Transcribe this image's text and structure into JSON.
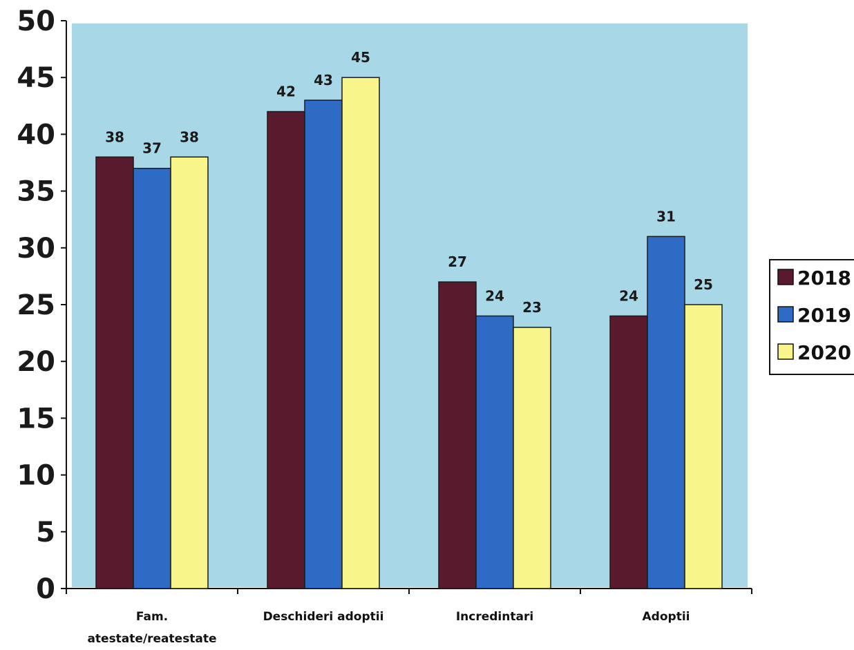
{
  "chart_data": {
    "type": "bar",
    "categories": [
      "Fam. atestate/reatestate",
      "Deschideri adoptii",
      "Incredintari",
      "Adoptii"
    ],
    "category_lines": [
      [
        "Fam.",
        "atestate/reatestate"
      ],
      [
        "Deschideri adoptii"
      ],
      [
        "Incredintari"
      ],
      [
        "Adoptii"
      ]
    ],
    "series": [
      {
        "name": "2018",
        "values": [
          38,
          42,
          27,
          24
        ],
        "color": "#5a1a2e"
      },
      {
        "name": "2019",
        "values": [
          37,
          43,
          24,
          31
        ],
        "color": "#2e6bc4"
      },
      {
        "name": "2020",
        "values": [
          38,
          45,
          23,
          25
        ],
        "color": "#f8f58a"
      }
    ],
    "ylim": [
      0,
      50
    ],
    "yticks": [
      0,
      5,
      10,
      15,
      20,
      25,
      30,
      35,
      40,
      45,
      50
    ],
    "plot_background": "#a8d8e8",
    "legend_position": "right",
    "grid": false,
    "title": "",
    "xlabel": "",
    "ylabel": ""
  }
}
